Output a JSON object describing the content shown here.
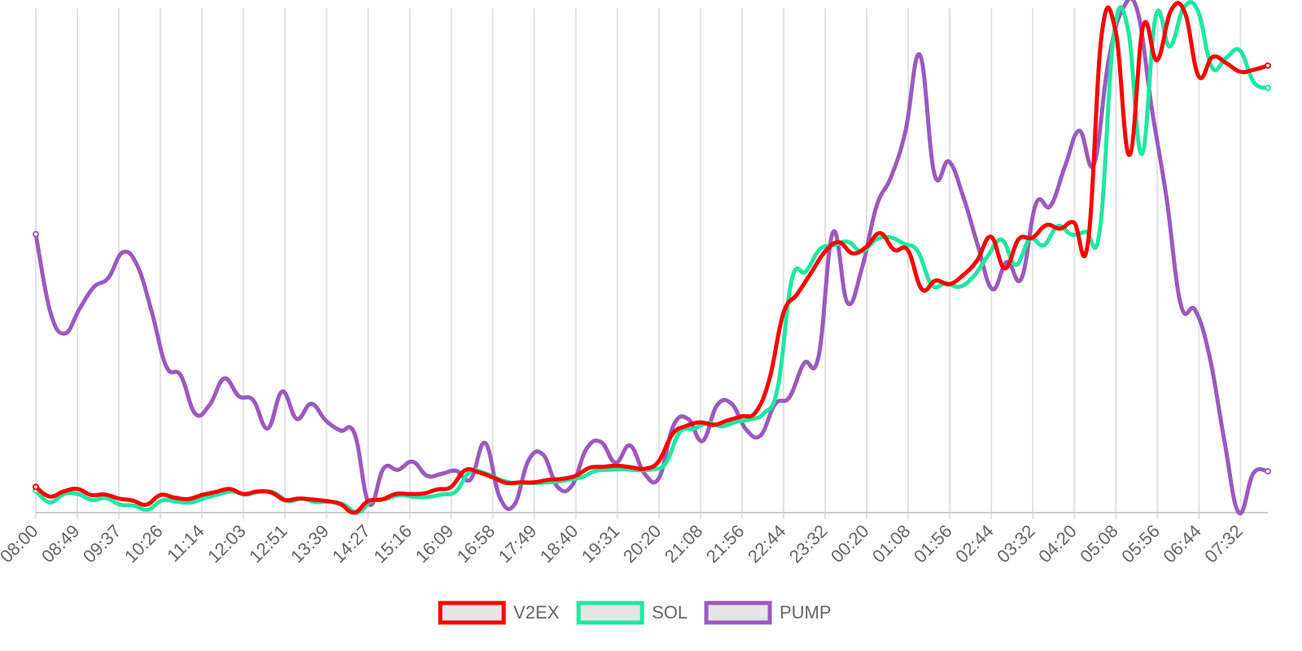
{
  "chart_data": {
    "type": "line",
    "title": "",
    "xlabel": "",
    "ylabel": "",
    "ylim": [
      0,
      100
    ],
    "grid": "vertical",
    "legend_position": "bottom-center",
    "x_tick_labels": [
      "08:00",
      "08:49",
      "09:37",
      "10:26",
      "11:14",
      "12:03",
      "12:51",
      "13:39",
      "14:27",
      "15:16",
      "16:09",
      "16:58",
      "17:49",
      "18:40",
      "19:31",
      "20:20",
      "21:08",
      "21:56",
      "22:44",
      "23:32",
      "00:20",
      "01:08",
      "01:56",
      "02:44",
      "03:32",
      "04:20",
      "05:08",
      "05:56",
      "06:44",
      "07:32"
    ],
    "series": [
      {
        "name": "V2EX",
        "color": "#ff0000",
        "values": [
          5.1,
          3.2,
          4.2,
          4.7,
          3.5,
          3.6,
          2.8,
          2.4,
          1.6,
          3.5,
          3.0,
          2.7,
          3.5,
          4.1,
          4.7,
          3.7,
          4.2,
          4.0,
          2.5,
          2.8,
          2.6,
          2.3,
          1.7,
          0,
          2.3,
          2.6,
          3.7,
          3.7,
          3.8,
          4.6,
          5.1,
          8.4,
          8.0,
          7.0,
          5.9,
          6.0,
          6.0,
          6.5,
          6.7,
          7.3,
          8.9,
          9.1,
          9.3,
          9.0,
          8.7,
          10.2,
          15.6,
          17.2,
          17.9,
          17.4,
          18.3,
          19.1,
          19.9,
          26.5,
          39.5,
          43.3,
          47.5,
          51.7,
          53.6,
          51.4,
          52.7,
          55.4,
          52.1,
          52.0,
          44.3,
          46.0,
          45.3,
          47.1,
          50.0,
          54.7,
          48.4,
          54.2,
          54.5,
          57.0,
          56.3,
          57.5,
          53.4,
          94.8,
          95.5,
          70.9,
          96.5,
          89.7,
          99.5,
          99.2,
          86.5,
          90.3,
          89.1,
          87.4,
          87.8,
          88.6
        ]
      },
      {
        "name": "SOL",
        "color": "#1de9a0",
        "values": [
          4.4,
          2.0,
          3.7,
          3.7,
          2.5,
          2.9,
          1.6,
          1.4,
          0.6,
          2.4,
          2.2,
          2.0,
          2.8,
          3.6,
          4.2,
          3.6,
          4.2,
          4.0,
          2.3,
          2.8,
          2.1,
          2.2,
          1.6,
          0,
          2.4,
          2.7,
          3.5,
          3.1,
          3.1,
          3.6,
          4.2,
          8.1,
          7.9,
          6.7,
          5.9,
          5.9,
          5.9,
          6.1,
          6.5,
          7.0,
          8.3,
          8.5,
          8.6,
          8.4,
          8.6,
          9.8,
          16.0,
          16.6,
          17.8,
          17.1,
          18.0,
          18.5,
          19.7,
          24.9,
          46.2,
          47.8,
          52.2,
          53.0,
          53.7,
          51.8,
          54.1,
          54.6,
          53.3,
          51.8,
          45.1,
          45.5,
          44.8,
          46.9,
          50.9,
          54.1,
          49.1,
          54.2,
          53.0,
          56.8,
          55.1,
          55.7,
          56.0,
          94.8,
          96.0,
          71.1,
          98.5,
          92.4,
          100.1,
          99.5,
          88.3,
          90.1,
          91.6,
          85.3,
          84.2
        ]
      },
      {
        "name": "PUMP",
        "color": "#9b59c0",
        "values": [
          55.2,
          39.8,
          35.5,
          40.3,
          44.7,
          46.5,
          51.6,
          49.0,
          39.8,
          29.0,
          27.2,
          19.6,
          21.4,
          26.6,
          23.1,
          22.3,
          16.7,
          24.0,
          18.6,
          21.6,
          18.3,
          16.3,
          15.6,
          1.7,
          8.8,
          8.5,
          10.1,
          7.3,
          7.7,
          8.3,
          6.6,
          13.8,
          3.1,
          1.5,
          10.4,
          11.5,
          5.1,
          5.4,
          12.7,
          14.0,
          9.9,
          13.3,
          7.7,
          6.9,
          17.3,
          18.6,
          14.2,
          21.3,
          21.6,
          16.5,
          15.3,
          21.5,
          22.9,
          29.6,
          30.9,
          55.6,
          41.6,
          48.5,
          60.7,
          66.5,
          75.6,
          90.7,
          67.1,
          69.6,
          62.5,
          52.9,
          44.3,
          49.7,
          46.4,
          61.2,
          60.8,
          68.6,
          75.7,
          69.0,
          89.4,
          99.9,
          99.5,
          80.0,
          62.6,
          41.2,
          40.1,
          30.7,
          14.3,
          0,
          7.8,
          8.2
        ]
      }
    ]
  }
}
